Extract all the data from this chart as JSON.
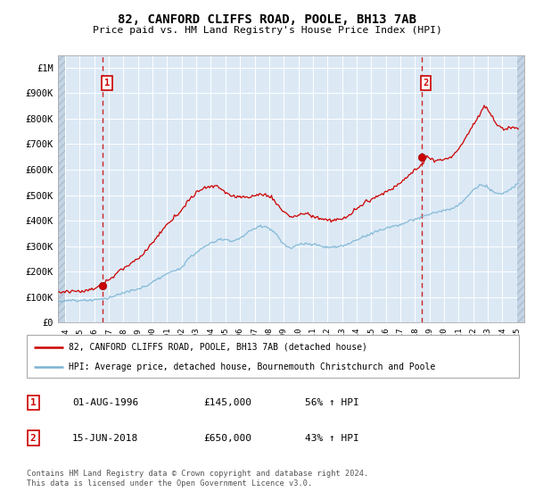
{
  "title": "82, CANFORD CLIFFS ROAD, POOLE, BH13 7AB",
  "subtitle": "Price paid vs. HM Land Registry's House Price Index (HPI)",
  "background_color": "#dce9f5",
  "grid_color": "#ffffff",
  "red_line_color": "#cc0000",
  "blue_line_color": "#7ab4d4",
  "marker_color": "#cc0000",
  "dashed_line_color": "#dd3333",
  "ylim": [
    0,
    1050000
  ],
  "yticks": [
    0,
    100000,
    200000,
    300000,
    400000,
    500000,
    600000,
    700000,
    800000,
    900000,
    1000000
  ],
  "ytick_labels": [
    "£0",
    "£100K",
    "£200K",
    "£300K",
    "£400K",
    "£500K",
    "£600K",
    "£700K",
    "£800K",
    "£900K",
    "£1M"
  ],
  "xlim_start": 1993.5,
  "xlim_end": 2025.5,
  "xticks": [
    1994,
    1995,
    1996,
    1997,
    1998,
    1999,
    2000,
    2001,
    2002,
    2003,
    2004,
    2005,
    2006,
    2007,
    2008,
    2009,
    2010,
    2011,
    2012,
    2013,
    2014,
    2015,
    2016,
    2017,
    2018,
    2019,
    2020,
    2021,
    2022,
    2023,
    2024,
    2025
  ],
  "hatch_end": 1994.0,
  "sale1_x": 1996.58,
  "sale1_y": 145000,
  "sale2_x": 2018.45,
  "sale2_y": 650000,
  "legend_line1": "82, CANFORD CLIFFS ROAD, POOLE, BH13 7AB (detached house)",
  "legend_line2": "HPI: Average price, detached house, Bournemouth Christchurch and Poole",
  "table_row1_date": "01-AUG-1996",
  "table_row1_price": "£145,000",
  "table_row1_hpi": "56% ↑ HPI",
  "table_row2_date": "15-JUN-2018",
  "table_row2_price": "£650,000",
  "table_row2_hpi": "43% ↑ HPI",
  "footnote": "Contains HM Land Registry data © Crown copyright and database right 2024.\nThis data is licensed under the Open Government Licence v3.0."
}
